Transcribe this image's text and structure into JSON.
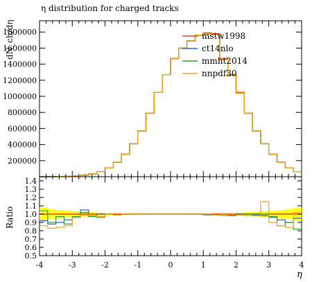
{
  "chart_data": [
    {
      "type": "line",
      "title": "η distribution for charged tracks",
      "xlabel": "",
      "ylabel": "dN_ch/dη",
      "x_edges": [
        -4.0,
        -3.75,
        -3.5,
        -3.25,
        -3.0,
        -2.75,
        -2.5,
        -2.25,
        -2.0,
        -1.75,
        -1.5,
        -1.25,
        -1.0,
        -0.75,
        -0.5,
        -0.25,
        0.0,
        0.25,
        0.5,
        0.75,
        1.0,
        1.25,
        1.5,
        1.75,
        2.0,
        2.25,
        2.5,
        2.75,
        3.0,
        3.25,
        3.5,
        3.75,
        4.0
      ],
      "yticks": [
        200000,
        400000,
        600000,
        800000,
        1000000,
        1200000,
        1400000,
        1600000,
        1800000
      ],
      "ylim": [
        0,
        1940000
      ],
      "xlim": [
        -4,
        4
      ],
      "legend_position": "top-right",
      "series": [
        {
          "name": "mstw1998",
          "color": "#e8401c",
          "values": [
            400,
            900,
            2000,
            4000,
            9000,
            18000,
            35000,
            63000,
            110000,
            180000,
            280000,
            410000,
            570000,
            790000,
            1050000,
            1270000,
            1470000,
            1600000,
            1690000,
            1760000,
            1790000,
            1780000,
            1470000,
            1270000,
            1050000,
            790000,
            570000,
            410000,
            280000,
            180000,
            110000,
            63000
          ]
        },
        {
          "name": "ct14nlo",
          "color": "#3060d8",
          "values": [
            400,
            900,
            2000,
            4000,
            9000,
            18000,
            35000,
            63000,
            110000,
            180000,
            280000,
            410000,
            570000,
            790000,
            1050000,
            1270000,
            1470000,
            1600000,
            1690000,
            1760000,
            1780000,
            1770000,
            1460000,
            1260000,
            1040000,
            790000,
            570000,
            410000,
            280000,
            180000,
            110000,
            63000
          ]
        },
        {
          "name": "mmht2014",
          "color": "#2e9e2e",
          "values": [
            400,
            900,
            2000,
            4000,
            9000,
            18000,
            35000,
            63000,
            110000,
            180000,
            280000,
            410000,
            570000,
            790000,
            1050000,
            1270000,
            1470000,
            1600000,
            1690000,
            1760000,
            1780000,
            1770000,
            1460000,
            1260000,
            1040000,
            790000,
            570000,
            410000,
            280000,
            180000,
            110000,
            63000
          ]
        },
        {
          "name": "nnpdf30",
          "color": "#f5a01a",
          "values": [
            400,
            900,
            2000,
            4000,
            9000,
            18000,
            35000,
            63000,
            110000,
            180000,
            280000,
            410000,
            570000,
            790000,
            1050000,
            1270000,
            1470000,
            1600000,
            1690000,
            1760000,
            1780000,
            1770000,
            1460000,
            1260000,
            1040000,
            790000,
            570000,
            410000,
            280000,
            180000,
            110000,
            63000
          ]
        }
      ]
    },
    {
      "type": "line",
      "title": "",
      "xlabel": "η",
      "ylabel": "Ratio",
      "xlim": [
        -4,
        4
      ],
      "ylim": [
        0.5,
        1.45
      ],
      "xticks": [
        -4,
        -3,
        -2,
        -1,
        0,
        1,
        2,
        3,
        4
      ],
      "yticks": [
        0.5,
        0.6,
        0.7,
        0.8,
        0.9,
        1.0,
        1.1,
        1.2,
        1.3,
        1.4
      ],
      "reference_line": 1.0,
      "band_color": "#ffff00",
      "band_halfwidth": [
        0.08,
        0.06,
        0.05,
        0.04,
        0.035,
        0.03,
        0.025,
        0.02,
        0.015,
        0.012,
        0.01,
        0.01,
        0.008,
        0.008,
        0.006,
        0.006,
        0.006,
        0.006,
        0.008,
        0.008,
        0.01,
        0.01,
        0.012,
        0.015,
        0.02,
        0.025,
        0.03,
        0.035,
        0.04,
        0.05,
        0.06,
        0.08
      ],
      "series": [
        {
          "name": "ct14nlo",
          "color": "#3060d8",
          "values": [
            0.92,
            0.88,
            0.9,
            0.93,
            0.96,
            1.05,
            0.98,
            1.0,
            1.0,
            0.99,
            1.0,
            1.0,
            1.0,
            1.0,
            1.0,
            1.0,
            1.0,
            1.0,
            1.0,
            1.0,
            0.99,
            0.99,
            0.98,
            0.99,
            1.0,
            1.0,
            0.99,
            0.98,
            0.96,
            0.93,
            0.9,
            0.95
          ]
        },
        {
          "name": "mmht2014",
          "color": "#2e9e2e",
          "values": [
            1.04,
            0.9,
            0.97,
            0.88,
            0.97,
            1.02,
            0.97,
            0.96,
            1.0,
            0.99,
            1.0,
            1.0,
            1.0,
            1.0,
            1.0,
            1.0,
            1.0,
            1.0,
            1.0,
            1.0,
            1.0,
            0.99,
            0.98,
            0.98,
            0.99,
            1.0,
            1.0,
            1.0,
            0.97,
            0.86,
            0.9,
            0.82
          ]
        },
        {
          "name": "nnpdf30",
          "color": "#f5a01a",
          "values": [
            0.86,
            0.83,
            0.84,
            0.86,
            0.96,
            0.99,
            0.98,
            0.97,
            1.0,
            0.99,
            1.0,
            1.0,
            1.0,
            1.0,
            1.0,
            1.0,
            1.0,
            1.0,
            1.0,
            1.0,
            1.0,
            0.99,
            0.98,
            0.99,
            0.99,
            0.98,
            0.98,
            1.15,
            0.9,
            0.86,
            0.84,
            1.02
          ]
        }
      ]
    }
  ]
}
